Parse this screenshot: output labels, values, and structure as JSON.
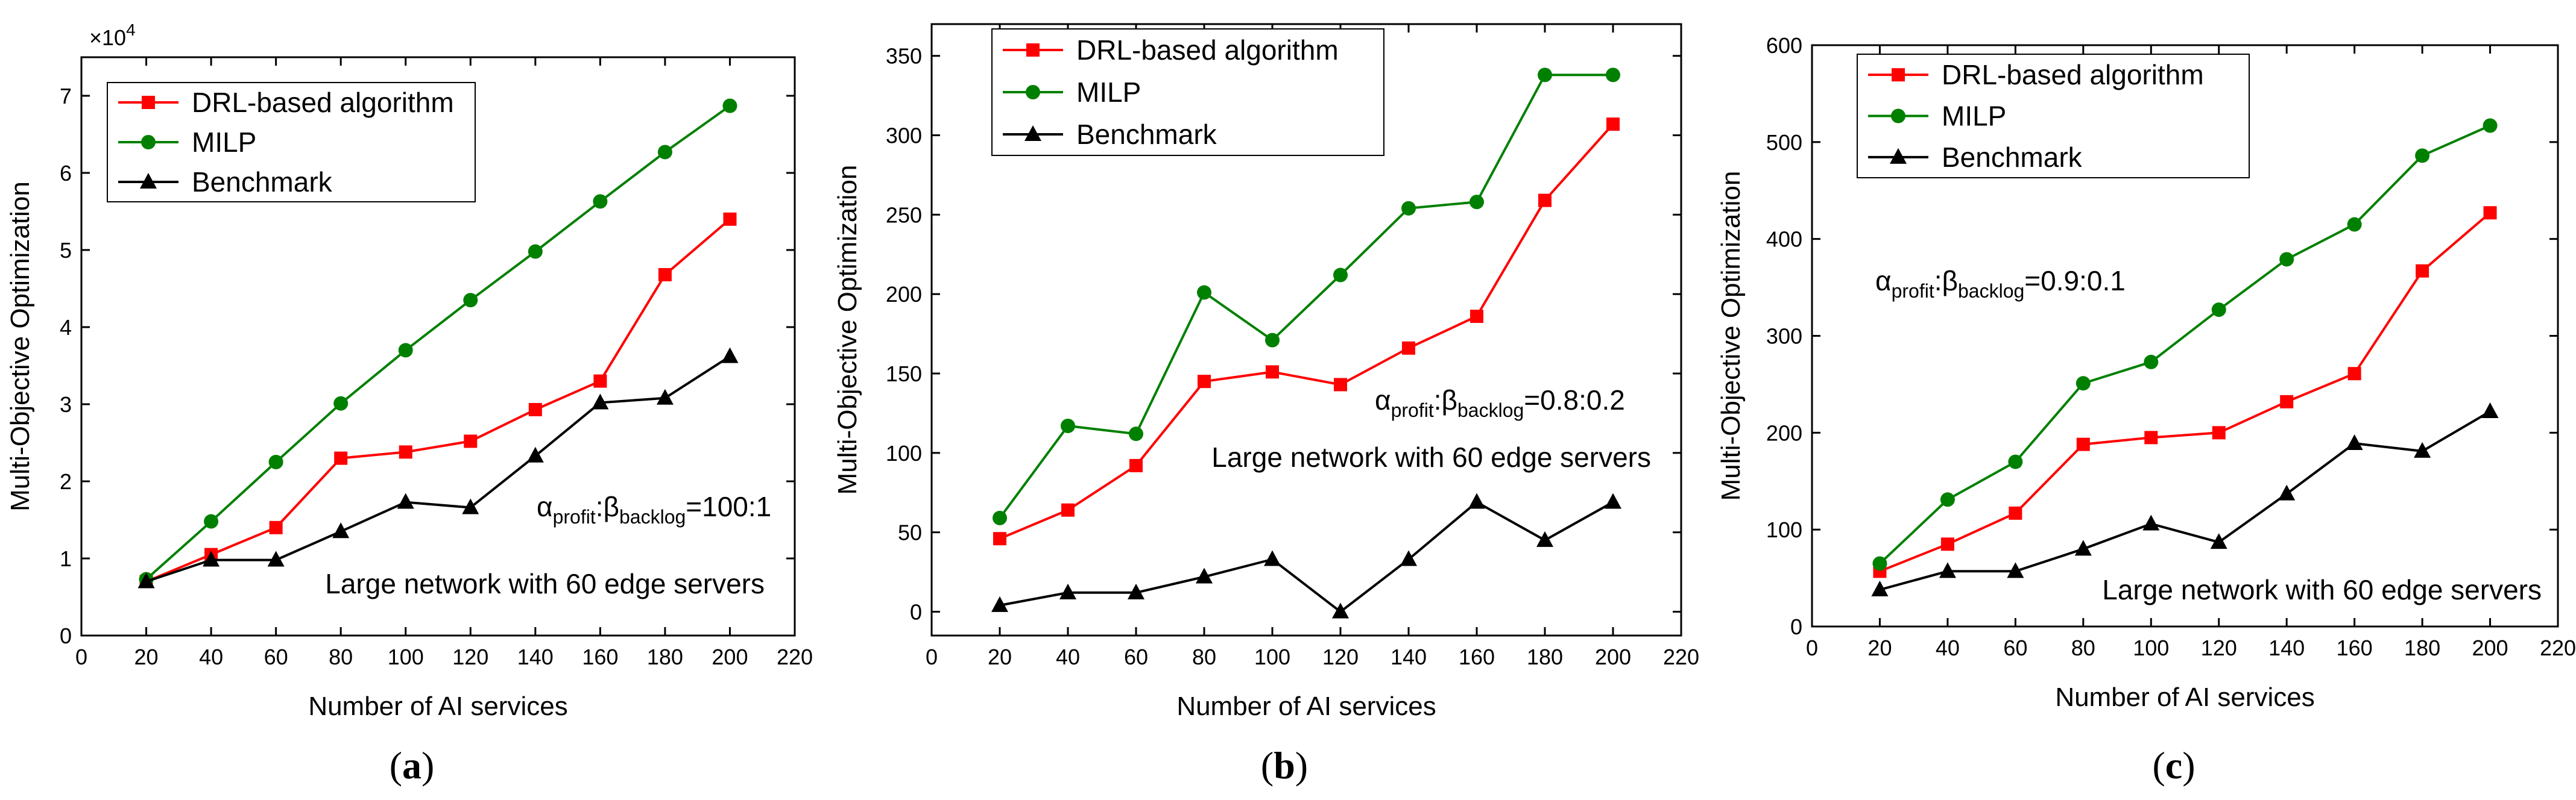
{
  "figure": {
    "type": "multi-panel line chart"
  },
  "chart_data": [
    {
      "type": "line",
      "panel": "a",
      "caption_open": "(",
      "caption_letter": "a",
      "caption_close": ")",
      "xlabel": "Number of AI services",
      "ylabel": "Multi-Objective Optimization",
      "xlim": [
        0,
        220
      ],
      "ylim": [
        0,
        7.5
      ],
      "xticks": [
        0,
        20,
        40,
        60,
        80,
        100,
        120,
        140,
        160,
        180,
        200,
        220
      ],
      "yticks": [
        0,
        1,
        2,
        3,
        4,
        5,
        6,
        7
      ],
      "y_multiplier": "×10^4",
      "multiplier_base": "×10",
      "multiplier_exp": "4",
      "annotation_alpha": "α",
      "annotation_alpha_sub": "profit",
      "annotation_colon": ":",
      "annotation_beta": "β",
      "annotation_beta_sub": "backlog",
      "annotation_ratio": "=100:1",
      "note": "Large network with 60 edge servers",
      "legend_position": "top-left",
      "x": [
        20,
        40,
        60,
        80,
        100,
        120,
        140,
        160,
        180,
        200
      ],
      "series": [
        {
          "name": "DRL-based algorithm",
          "color": "#ff0000",
          "marker": "square",
          "values": [
            0.7,
            1.05,
            1.4,
            2.3,
            2.38,
            2.52,
            2.93,
            3.3,
            4.68,
            5.4
          ]
        },
        {
          "name": "MILP",
          "color": "#008000",
          "marker": "circle",
          "values": [
            0.73,
            1.48,
            2.25,
            3.01,
            3.7,
            4.35,
            4.98,
            5.63,
            6.27,
            6.87
          ]
        },
        {
          "name": "Benchmark",
          "color": "#000000",
          "marker": "triangle",
          "values": [
            0.7,
            0.98,
            0.98,
            1.35,
            1.73,
            1.66,
            2.33,
            3.02,
            3.08,
            3.62
          ]
        }
      ]
    },
    {
      "type": "line",
      "panel": "b",
      "caption_open": "(",
      "caption_letter": "b",
      "caption_close": ")",
      "xlabel": "Number of AI services",
      "ylabel": "Multi-Objective Optimization",
      "xlim": [
        0,
        220
      ],
      "ylim": [
        -15,
        370
      ],
      "xticks": [
        0,
        20,
        40,
        60,
        80,
        100,
        120,
        140,
        160,
        180,
        200,
        220
      ],
      "yticks": [
        0,
        50,
        100,
        150,
        200,
        250,
        300,
        350
      ],
      "annotation_alpha": "α",
      "annotation_alpha_sub": "profit",
      "annotation_colon": ":",
      "annotation_beta": "β",
      "annotation_beta_sub": "backlog",
      "annotation_ratio": "=0.8:0.2",
      "note": "Large network with 60 edge servers",
      "legend_position": "top-left",
      "x": [
        20,
        40,
        60,
        80,
        100,
        120,
        140,
        160,
        180,
        200
      ],
      "series": [
        {
          "name": "DRL-based algorithm",
          "color": "#ff0000",
          "marker": "square",
          "values": [
            46,
            64,
            92,
            145,
            151,
            143,
            166,
            186,
            259,
            307
          ]
        },
        {
          "name": "MILP",
          "color": "#008000",
          "marker": "circle",
          "values": [
            59,
            117,
            112,
            201,
            171,
            212,
            254,
            258,
            338,
            338
          ]
        },
        {
          "name": "Benchmark",
          "color": "#000000",
          "marker": "triangle",
          "values": [
            4,
            12,
            12,
            22,
            33,
            0,
            33,
            69,
            45,
            69
          ]
        }
      ]
    },
    {
      "type": "line",
      "panel": "c",
      "caption_open": "(",
      "caption_letter": "c",
      "caption_close": ")",
      "xlabel": "Number of AI services",
      "ylabel": "Multi-Objective Optimization",
      "xlim": [
        0,
        220
      ],
      "ylim": [
        0,
        600
      ],
      "xticks": [
        0,
        20,
        40,
        60,
        80,
        100,
        120,
        140,
        160,
        180,
        200,
        220
      ],
      "yticks": [
        0,
        100,
        200,
        300,
        400,
        500,
        600
      ],
      "annotation_alpha": "α",
      "annotation_alpha_sub": "profit",
      "annotation_colon": ":",
      "annotation_beta": "β",
      "annotation_beta_sub": "backlog",
      "annotation_ratio": "=0.9:0.1",
      "note": "Large network with 60 edge servers",
      "legend_position": "top-left",
      "x": [
        20,
        40,
        60,
        80,
        100,
        120,
        140,
        160,
        180,
        200
      ],
      "series": [
        {
          "name": "DRL-based algorithm",
          "color": "#ff0000",
          "marker": "square",
          "values": [
            57,
            85,
            117,
            188,
            195,
            200,
            232,
            261,
            367,
            427
          ]
        },
        {
          "name": "MILP",
          "color": "#008000",
          "marker": "circle",
          "values": [
            65,
            131,
            170,
            251,
            273,
            327,
            379,
            415,
            486,
            517
          ]
        },
        {
          "name": "Benchmark",
          "color": "#000000",
          "marker": "triangle",
          "values": [
            38,
            57,
            57,
            80,
            106,
            87,
            137,
            189,
            181,
            222
          ]
        }
      ]
    }
  ]
}
